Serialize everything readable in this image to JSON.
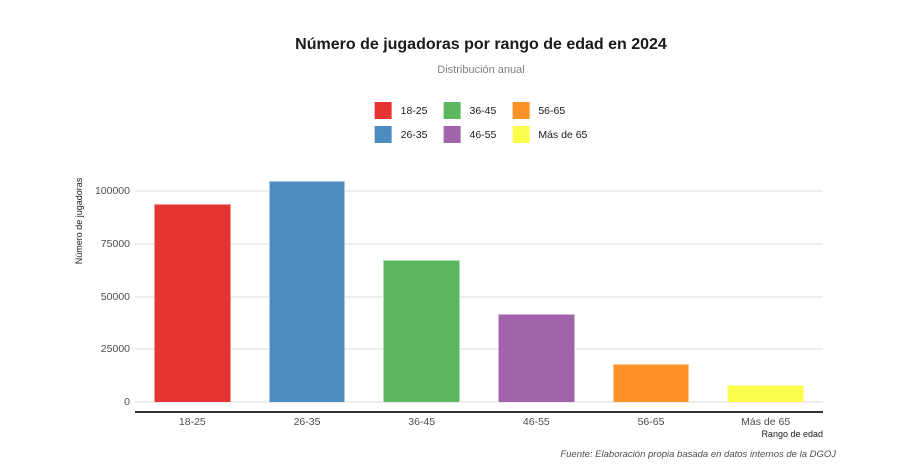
{
  "page": {
    "background": "#ffffff"
  },
  "chart_data": {
    "type": "bar",
    "title": "Número de jugadoras por rango de edad en 2024",
    "subtitle": "Distribución anual",
    "xlabel": "Rango de edad",
    "ylabel": "Número de jugadoras",
    "caption": "Fuente: Elaboración propia basada en datos internos de la DGOJ",
    "categories": [
      "18-25",
      "26-35",
      "36-45",
      "46-55",
      "56-65",
      "Más de 65"
    ],
    "values": [
      94000,
      105000,
      67500,
      42000,
      18000,
      8000
    ],
    "colors": [
      "#e63432",
      "#4e8bc0",
      "#5cb85f",
      "#a164ab",
      "#fc9127",
      "#fcfc4d"
    ],
    "yticks": [
      0,
      25000,
      50000,
      75000,
      100000
    ],
    "ylim": [
      0,
      112500
    ],
    "grid": "horizontal-major-only",
    "legend_position": "top-center",
    "legend_rows": 2,
    "axis_line_color": "#333333",
    "gridline_color": "#ededed",
    "bar_width_ratio": 0.67
  }
}
